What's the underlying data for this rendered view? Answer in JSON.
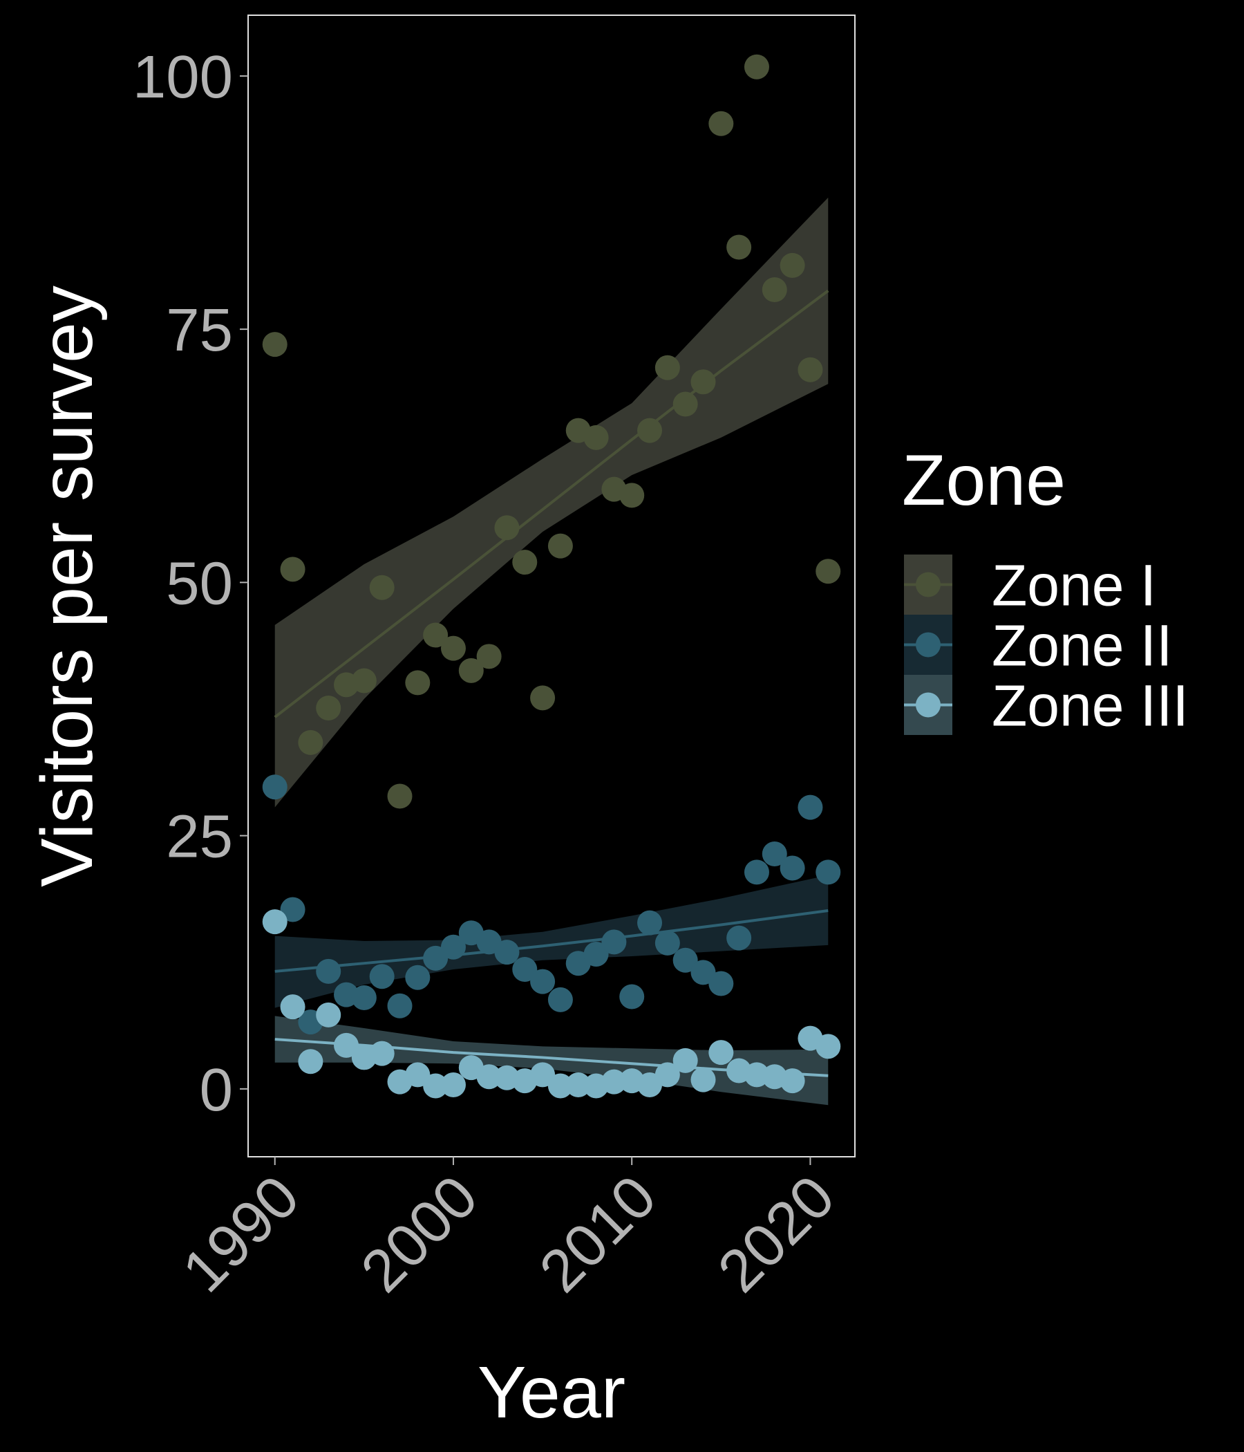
{
  "chart_data": {
    "type": "scatter",
    "title": "",
    "xlabel": "Year",
    "ylabel": "Visitors per survey",
    "xlim": [
      1988.5,
      2022.5
    ],
    "ylim": [
      -6.7,
      106
    ],
    "x_ticks": [
      1990,
      2000,
      2010,
      2020
    ],
    "y_ticks": [
      0,
      25,
      50,
      75,
      100
    ],
    "grid": false,
    "background": "#000000",
    "panel_border": "#e0e0e0",
    "tick_color": "#b3b3b3",
    "legend": {
      "title": "Zone",
      "position": "right"
    },
    "series": [
      {
        "name": "Zone I",
        "color": "#4a5238",
        "band_color": "#3d3f36",
        "x": [
          1990,
          1991,
          1992,
          1993,
          1994,
          1995,
          1996,
          1997,
          1998,
          1999,
          2000,
          2001,
          2002,
          2003,
          2004,
          2005,
          2006,
          2007,
          2008,
          2009,
          2010,
          2011,
          2012,
          2013,
          2014,
          2015,
          2016,
          2017,
          2018,
          2019,
          2020,
          2021
        ],
        "y": [
          73.5,
          51.3,
          34.2,
          37.6,
          39.9,
          40.3,
          49.5,
          28.9,
          40.1,
          44.8,
          43.5,
          41.3,
          42.7,
          55.4,
          52,
          38.6,
          53.6,
          65,
          64.3,
          59.2,
          58.6,
          65,
          71.2,
          67.6,
          69.8,
          95.3,
          83.1,
          100.9,
          78.9,
          81.3,
          71,
          51.1
        ],
        "fit": {
          "x": [
            1990,
            1995,
            2000,
            2005,
            2010,
            2015,
            2021
          ],
          "y": [
            36.7,
            43.5,
            50.3,
            57.2,
            64.1,
            70.9,
            78.8
          ],
          "lower": [
            27.8,
            38.5,
            47.4,
            55,
            60.6,
            64.3,
            69.6
          ],
          "upper": [
            45.8,
            51.8,
            56.5,
            62.2,
            67.7,
            77,
            88
          ]
        }
      },
      {
        "name": "Zone II",
        "color": "#2e6173",
        "band_color": "#172a33",
        "x": [
          1990,
          1991,
          1992,
          1993,
          1994,
          1995,
          1996,
          1997,
          1998,
          1999,
          2000,
          2001,
          2002,
          2003,
          2004,
          2005,
          2006,
          2007,
          2008,
          2009,
          2010,
          2011,
          2012,
          2013,
          2014,
          2015,
          2016,
          2017,
          2018,
          2019,
          2020,
          2021
        ],
        "y": [
          29.8,
          17.7,
          6.6,
          11.6,
          9.3,
          9,
          11.1,
          8.2,
          11,
          12.9,
          14,
          15.4,
          14.5,
          13.5,
          11.8,
          10.6,
          8.8,
          12.4,
          13.3,
          14.5,
          9.1,
          16.4,
          14.4,
          12.7,
          11.5,
          10.4,
          14.9,
          21.4,
          23.2,
          21.8,
          27.8,
          21.4
        ],
        "fit": {
          "x": [
            1990,
            1995,
            2000,
            2005,
            2010,
            2015,
            2021
          ],
          "y": [
            11.6,
            12.4,
            13.2,
            14.1,
            15.1,
            16.2,
            17.6
          ],
          "lower": [
            8,
            10.3,
            11.8,
            12.7,
            13.1,
            13.6,
            14.2
          ],
          "upper": [
            15.1,
            14.6,
            14.7,
            15.5,
            17.1,
            18.8,
            21.1
          ]
        }
      },
      {
        "name": "Zone III",
        "color": "#7cb2c4",
        "band_color": "#34494f",
        "x": [
          1990,
          1991,
          1992,
          1993,
          1994,
          1995,
          1996,
          1997,
          1998,
          1999,
          2000,
          2001,
          2002,
          2003,
          2004,
          2005,
          2006,
          2007,
          2008,
          2009,
          2010,
          2011,
          2012,
          2013,
          2014,
          2015,
          2016,
          2017,
          2018,
          2019,
          2020,
          2021
        ],
        "y": [
          16.5,
          8.1,
          2.7,
          7.3,
          4.3,
          3.1,
          3.5,
          0.7,
          1.4,
          0.3,
          0.4,
          2.1,
          1.2,
          1.1,
          0.8,
          1.4,
          0.3,
          0.4,
          0.3,
          0.7,
          0.8,
          0.4,
          1.4,
          2.8,
          0.9,
          3.6,
          1.8,
          1.4,
          1.2,
          0.8,
          5,
          4.2
        ],
        "fit": {
          "x": [
            1990,
            1995,
            2000,
            2005,
            2010,
            2015,
            2021
          ],
          "y": [
            4.9,
            4.3,
            3.6,
            3.1,
            2.5,
            1.9,
            1.3
          ],
          "lower": [
            2.6,
            2.6,
            2.5,
            2,
            1,
            -0.3,
            -1.6
          ],
          "upper": [
            7.2,
            6,
            4.7,
            4.2,
            4,
            3.8,
            3.9
          ]
        }
      }
    ]
  }
}
